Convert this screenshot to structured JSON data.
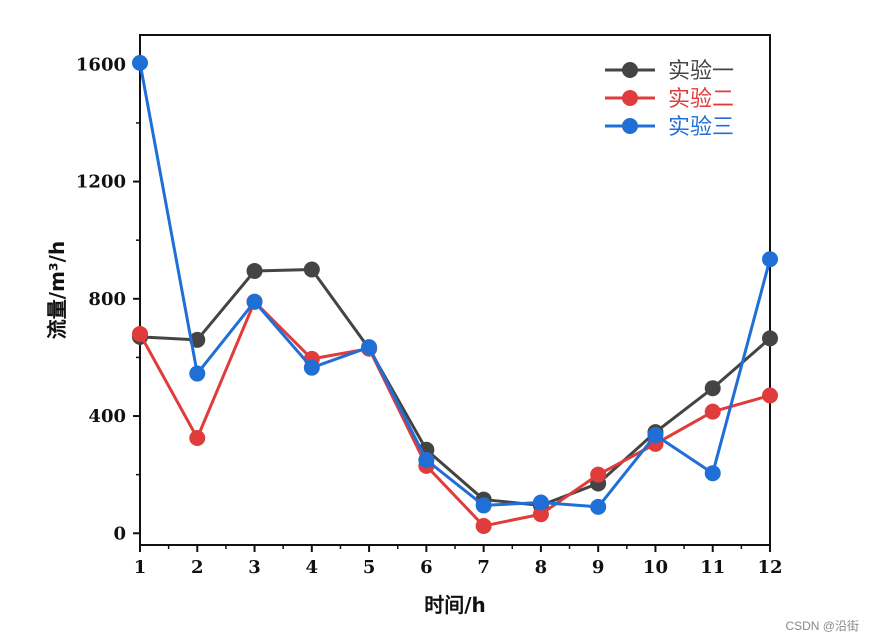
{
  "chart_data": {
    "type": "line",
    "xlabel": "时间/h",
    "ylabel": "流量/m³/h",
    "x": [
      1,
      2,
      3,
      4,
      5,
      6,
      7,
      8,
      9,
      10,
      11,
      12
    ],
    "xlim": [
      1,
      12
    ],
    "ylim": [
      -40,
      1700
    ],
    "yticks": [
      0,
      400,
      800,
      1200,
      1600
    ],
    "legend_position": "top-right",
    "grid": false,
    "series": [
      {
        "name": "实验一",
        "color": "#444444",
        "values": [
          670,
          660,
          895,
          900,
          630,
          285,
          115,
          95,
          170,
          345,
          495,
          665
        ]
      },
      {
        "name": "实验二",
        "color": "#e03c3c",
        "values": [
          680,
          325,
          790,
          595,
          630,
          230,
          25,
          65,
          200,
          305,
          415,
          470
        ]
      },
      {
        "name": "实验三",
        "color": "#1f6fd6",
        "values": [
          1605,
          545,
          790,
          565,
          635,
          250,
          95,
          105,
          90,
          335,
          205,
          935
        ]
      }
    ]
  },
  "watermark": "CSDN @沿街"
}
